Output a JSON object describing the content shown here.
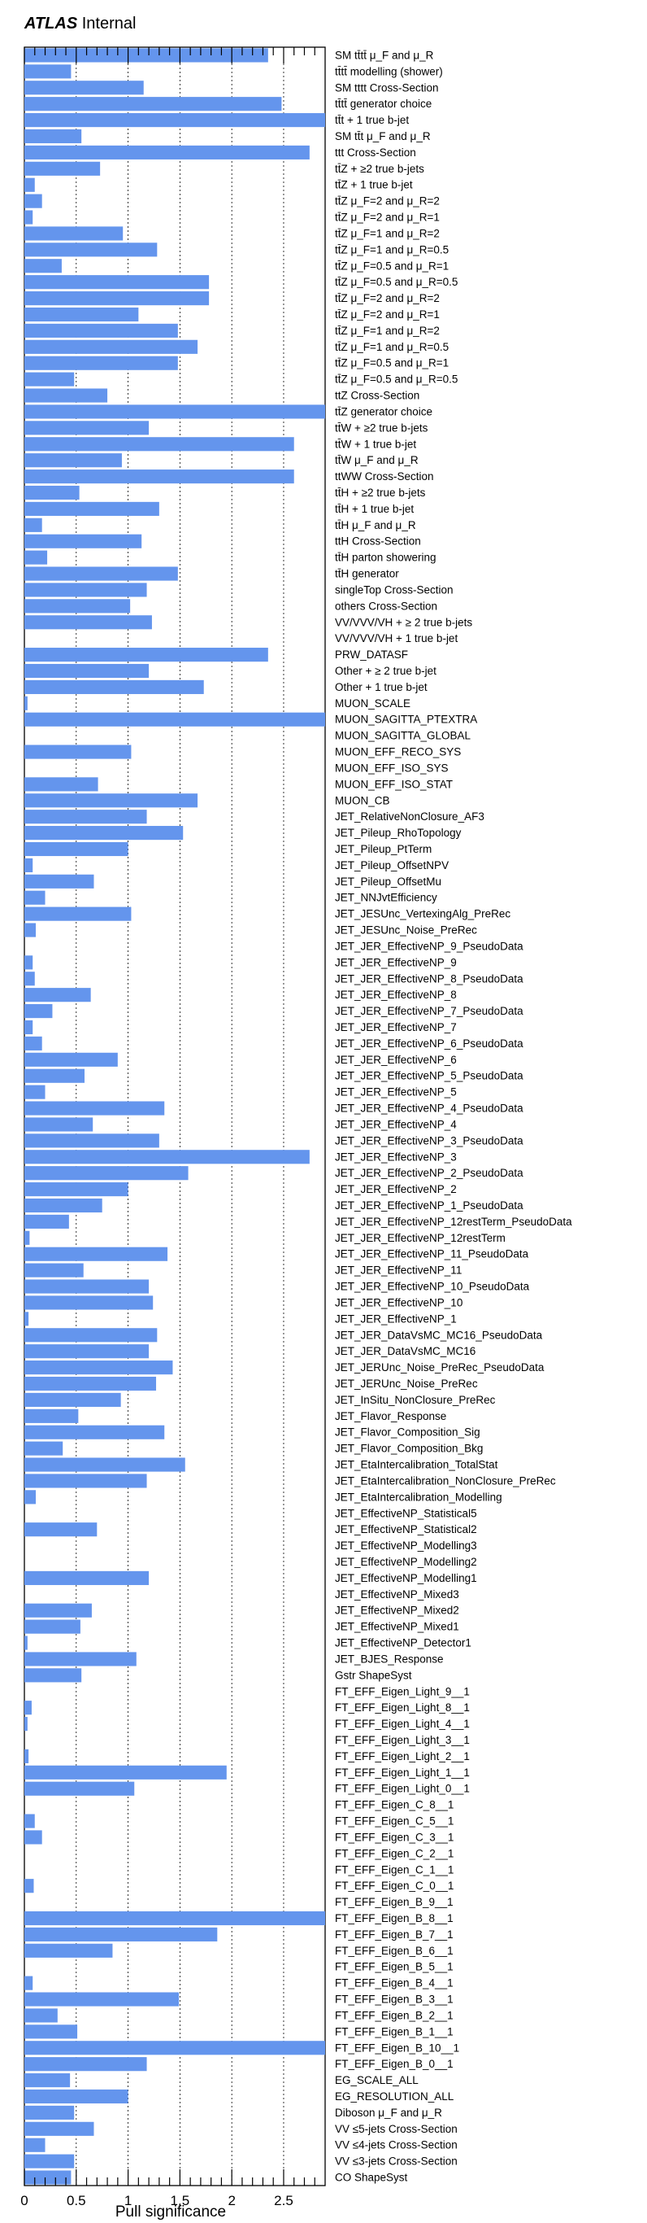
{
  "header": {
    "experiment": "ATLAS",
    "status": "Internal"
  },
  "chart_data": {
    "type": "bar",
    "orientation": "horizontal",
    "xlabel": "Pull significance",
    "xlim": [
      0,
      2.9
    ],
    "xticks": [
      "0",
      "0.5",
      "1",
      "1.5",
      "2",
      "2.5"
    ],
    "grid": "vertical dashed",
    "bar_color": "#6495ed",
    "categories": [
      "SM tt̄tt̄  μ_F and  μ_R",
      "tt̄tt̄ modelling (shower)",
      "SM tttt Cross-Section",
      "tt̄tt̄ generator choice",
      "tt̄t + 1 true b-jet",
      "SM tt̄t   μ_F and  μ_R",
      "ttt Cross-Section",
      "tt̄Z +   ≥2 true b-jets",
      "tt̄Z + 1 true b-jet",
      "tt̄Z  μ_F=2 and  μ_R=2",
      "tt̄Z  μ_F=2 and  μ_R=1",
      "tt̄Z  μ_F=1 and  μ_R=2",
      "tt̄Z  μ_F=1 and  μ_R=0.5",
      "tt̄Z  μ_F=0.5 and  μ_R=1",
      "tt̄Z  μ_F=0.5 and  μ_R=0.5",
      "tt̄Z  μ_F=2 and  μ_R=2",
      "tt̄Z  μ_F=2 and  μ_R=1",
      "tt̄Z  μ_F=1 and  μ_R=2",
      "tt̄Z  μ_F=1 and  μ_R=0.5",
      "tt̄Z  μ_F=0.5 and  μ_R=1",
      "tt̄Z  μ_F=0.5 and  μ_R=0.5",
      "ttZ Cross-Section",
      "tt̄Z generator choice",
      "tt̄W +   ≥2 true b-jets",
      "tt̄W + 1 true b-jet",
      "tt̄W  μ_F and  μ_R",
      "ttWW Cross-Section",
      "tt̄H +   ≥2 true b-jets",
      "tt̄H + 1 true b-jet",
      "tt̄H  μ_F and  μ_R",
      "ttH Cross-Section",
      "tt̄H parton showering",
      "tt̄H generator",
      "singleTop Cross-Section",
      "others Cross-Section",
      "VV/VVV/VH +   ≥ 2 true b-jets",
      "VV/VVV/VH + 1 true b-jet",
      "PRW_DATASF",
      "Other +  ≥ 2 true b-jet",
      "Other + 1 true b-jet",
      "MUON_SCALE",
      "MUON_SAGITTA_PTEXTRA",
      "MUON_SAGITTA_GLOBAL",
      "MUON_EFF_RECO_SYS",
      "MUON_EFF_ISO_SYS",
      "MUON_EFF_ISO_STAT",
      "MUON_CB",
      "JET_RelativeNonClosure_AF3",
      "JET_Pileup_RhoTopology",
      "JET_Pileup_PtTerm",
      "JET_Pileup_OffsetNPV",
      "JET_Pileup_OffsetMu",
      "JET_NNJvtEfficiency",
      "JET_JESUnc_VertexingAlg_PreRec",
      "JET_JESUnc_Noise_PreRec",
      "JET_JER_EffectiveNP_9_PseudoData",
      "JET_JER_EffectiveNP_9",
      "JET_JER_EffectiveNP_8_PseudoData",
      "JET_JER_EffectiveNP_8",
      "JET_JER_EffectiveNP_7_PseudoData",
      "JET_JER_EffectiveNP_7",
      "JET_JER_EffectiveNP_6_PseudoData",
      "JET_JER_EffectiveNP_6",
      "JET_JER_EffectiveNP_5_PseudoData",
      "JET_JER_EffectiveNP_5",
      "JET_JER_EffectiveNP_4_PseudoData",
      "JET_JER_EffectiveNP_4",
      "JET_JER_EffectiveNP_3_PseudoData",
      "JET_JER_EffectiveNP_3",
      "JET_JER_EffectiveNP_2_PseudoData",
      "JET_JER_EffectiveNP_2",
      "JET_JER_EffectiveNP_1_PseudoData",
      "JET_JER_EffectiveNP_12restTerm_PseudoData",
      "JET_JER_EffectiveNP_12restTerm",
      "JET_JER_EffectiveNP_11_PseudoData",
      "JET_JER_EffectiveNP_11",
      "JET_JER_EffectiveNP_10_PseudoData",
      "JET_JER_EffectiveNP_10",
      "JET_JER_EffectiveNP_1",
      "JET_JER_DataVsMC_MC16_PseudoData",
      "JET_JER_DataVsMC_MC16",
      "JET_JERUnc_Noise_PreRec_PseudoData",
      "JET_JERUnc_Noise_PreRec",
      "JET_InSitu_NonClosure_PreRec",
      "JET_Flavor_Response",
      "JET_Flavor_Composition_Sig",
      "JET_Flavor_Composition_Bkg",
      "JET_EtaIntercalibration_TotalStat",
      "JET_EtaIntercalibration_NonClosure_PreRec",
      "JET_EtaIntercalibration_Modelling",
      "JET_EffectiveNP_Statistical5",
      "JET_EffectiveNP_Statistical2",
      "JET_EffectiveNP_Modelling3",
      "JET_EffectiveNP_Modelling2",
      "JET_EffectiveNP_Modelling1",
      "JET_EffectiveNP_Mixed3",
      "JET_EffectiveNP_Mixed2",
      "JET_EffectiveNP_Mixed1",
      "JET_EffectiveNP_Detector1",
      "JET_BJES_Response",
      "Gstr ShapeSyst",
      "FT_EFF_Eigen_Light_9__1",
      "FT_EFF_Eigen_Light_8__1",
      "FT_EFF_Eigen_Light_4__1",
      "FT_EFF_Eigen_Light_3__1",
      "FT_EFF_Eigen_Light_2__1",
      "FT_EFF_Eigen_Light_1__1",
      "FT_EFF_Eigen_Light_0__1",
      "FT_EFF_Eigen_C_8__1",
      "FT_EFF_Eigen_C_5__1",
      "FT_EFF_Eigen_C_3__1",
      "FT_EFF_Eigen_C_2__1",
      "FT_EFF_Eigen_C_1__1",
      "FT_EFF_Eigen_C_0__1",
      "FT_EFF_Eigen_B_9__1",
      "FT_EFF_Eigen_B_8__1",
      "FT_EFF_Eigen_B_7__1",
      "FT_EFF_Eigen_B_6__1",
      "FT_EFF_Eigen_B_5__1",
      "FT_EFF_Eigen_B_4__1",
      "FT_EFF_Eigen_B_3__1",
      "FT_EFF_Eigen_B_2__1",
      "FT_EFF_Eigen_B_1__1",
      "FT_EFF_Eigen_B_10__1",
      "FT_EFF_Eigen_B_0__1",
      "EG_SCALE_ALL",
      "EG_RESOLUTION_ALL",
      "Diboson  μ_F and  μ_R",
      "VV  ≤5-jets Cross-Section",
      "VV  ≤4-jets Cross-Section",
      "VV  ≤3-jets Cross-Section",
      "CO ShapeSyst"
    ],
    "values": [
      2.35,
      0.45,
      1.15,
      2.48,
      2.9,
      0.55,
      2.75,
      0.73,
      0.1,
      0.17,
      0.08,
      0.95,
      1.28,
      0.36,
      1.78,
      1.78,
      1.1,
      1.48,
      1.67,
      1.48,
      0.48,
      0.8,
      2.9,
      1.2,
      2.6,
      0.94,
      2.6,
      0.53,
      1.3,
      0.17,
      1.13,
      0.22,
      1.48,
      1.18,
      1.02,
      1.23,
      0.0,
      2.35,
      1.2,
      1.73,
      0.03,
      2.9,
      0.0,
      1.03,
      0.0,
      0.71,
      1.67,
      1.18,
      1.53,
      1.0,
      0.08,
      0.67,
      0.2,
      1.03,
      0.11,
      0.0,
      0.08,
      0.1,
      0.64,
      0.27,
      0.08,
      0.17,
      0.9,
      0.58,
      0.2,
      1.35,
      0.66,
      1.3,
      2.75,
      1.58,
      1.0,
      0.75,
      0.43,
      0.05,
      1.38,
      0.57,
      1.2,
      1.24,
      0.04,
      1.28,
      1.2,
      1.43,
      1.27,
      0.93,
      0.52,
      1.35,
      0.37,
      1.55,
      1.18,
      0.11,
      0.0,
      0.7,
      0.0,
      0.0,
      1.2,
      0.0,
      0.65,
      0.54,
      0.03,
      1.08,
      0.55,
      0.0,
      0.07,
      0.03,
      0.0,
      0.04,
      1.95,
      1.06,
      0.0,
      0.1,
      0.17,
      0.0,
      0.0,
      0.09,
      0.0,
      2.9,
      1.86,
      0.85,
      0.0,
      0.08,
      1.49,
      0.32,
      0.51,
      2.9,
      1.18,
      0.44,
      1.0,
      0.48,
      0.67,
      0.2,
      0.48,
      0.45
    ]
  }
}
